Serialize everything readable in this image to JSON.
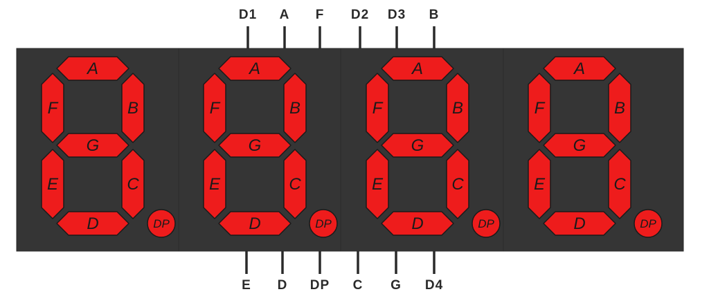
{
  "colors": {
    "background": "#ffffff",
    "body": "#353535",
    "body_edge": "#2a2a2a",
    "segment": "#ee1c1c",
    "segment_edge": "#1a1a1a",
    "pin": "#2a2a2a"
  },
  "segment_labels": {
    "a": "A",
    "b": "B",
    "c": "C",
    "d": "D",
    "e": "E",
    "f": "F",
    "g": "G",
    "dp": "DP"
  },
  "pins_top": [
    "D1",
    "A",
    "F",
    "D2",
    "D3",
    "B"
  ],
  "pins_bottom": [
    "E",
    "D",
    "DP",
    "C",
    "G",
    "D4"
  ]
}
